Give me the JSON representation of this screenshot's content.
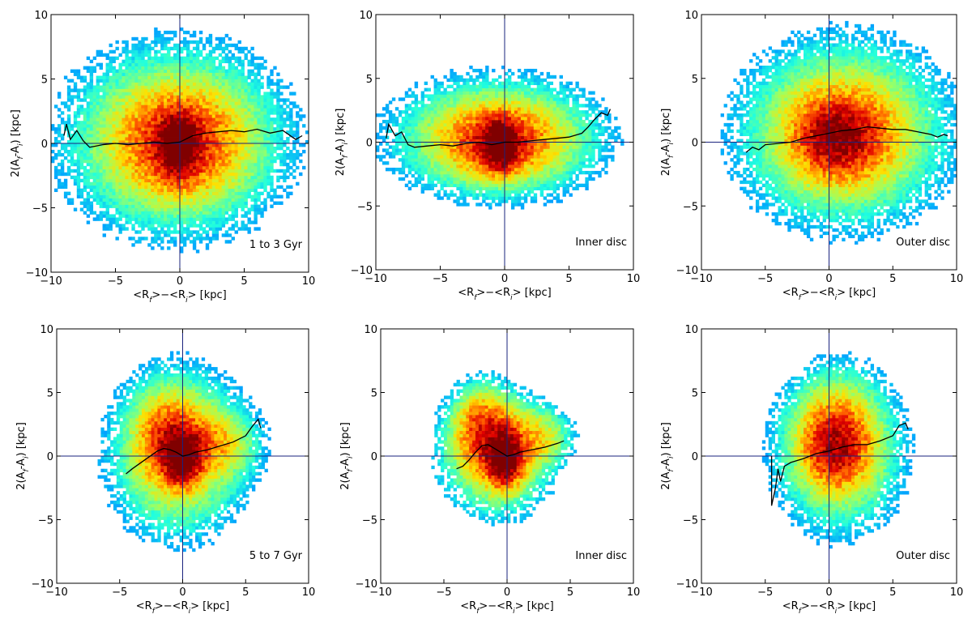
{
  "figure": {
    "colors": {
      "axis_lines": "#1a237e",
      "median": "#000000",
      "colormap": [
        "#00008f",
        "#0020ff",
        "#00a0ff",
        "#20ffdf",
        "#9fff60",
        "#ffe000",
        "#ff6000",
        "#df0000",
        "#800000"
      ]
    }
  },
  "chart_data": [
    {
      "type": "heatmap",
      "title": "",
      "annotation": "1 to 3 Gyr",
      "xlabel": "<R_f>−<R_i> [kpc]",
      "ylabel": "2(A_f-A_i) [kpc]",
      "xlim": [
        -10,
        10
      ],
      "ylim": [
        -10,
        10
      ],
      "xticks": [
        "−10",
        "−5",
        "0",
        "5",
        "10"
      ],
      "yticks": [
        "−10",
        "−5",
        "0",
        "5",
        "10"
      ],
      "density_blobs": [
        {
          "x": -0.3,
          "y": 0.3,
          "sx": 5.0,
          "sy": 4.2,
          "w": 0.35
        },
        {
          "x": 0.0,
          "y": 0.0,
          "sx": 3.0,
          "sy": 2.6,
          "w": 0.45
        },
        {
          "x": -0.1,
          "y": -0.1,
          "sx": 0.9,
          "sy": 1.4,
          "w": 1.0
        }
      ],
      "edge": 0.05,
      "median_line": {
        "x": [
          -9,
          -8.8,
          -8.5,
          -8,
          -7.5,
          -7,
          -6.5,
          -6,
          -5,
          -4,
          -3,
          -2,
          -1,
          0,
          1,
          2,
          3,
          4,
          5,
          6,
          7,
          8,
          9,
          9.5
        ],
        "y": [
          0.6,
          1.5,
          0.3,
          1.0,
          0.2,
          -0.3,
          -0.2,
          -0.1,
          0.0,
          -0.1,
          0.0,
          0.1,
          0.0,
          0.1,
          0.6,
          0.8,
          0.9,
          1.0,
          0.9,
          1.1,
          0.8,
          1.0,
          0.3,
          0.6
        ]
      }
    },
    {
      "type": "heatmap",
      "title": "",
      "annotation": "Inner disc",
      "xlabel": "<R_f>−<R_i> [kpc]",
      "ylabel": "2(A_f-A_i) [kpc]",
      "xlim": [
        -10,
        10
      ],
      "ylim": [
        -10,
        10
      ],
      "xticks": [
        "−10",
        "−5",
        "0",
        "5",
        "10"
      ],
      "yticks": [
        "−10",
        "−5",
        "0",
        "5",
        "10"
      ],
      "density_blobs": [
        {
          "x": -0.5,
          "y": 0.4,
          "sx": 4.8,
          "sy": 2.7,
          "w": 0.35
        },
        {
          "x": -0.5,
          "y": 0.0,
          "sx": 2.8,
          "sy": 1.8,
          "w": 0.45
        },
        {
          "x": -0.3,
          "y": -0.2,
          "sx": 0.8,
          "sy": 1.2,
          "w": 1.0
        }
      ],
      "edge": 0.05,
      "median_line": {
        "x": [
          -9.2,
          -9.0,
          -8.5,
          -8,
          -7.5,
          -7,
          -6,
          -5,
          -4,
          -3,
          -2,
          -1,
          0,
          1,
          2,
          3,
          4,
          5,
          6,
          6.5,
          7,
          7.5,
          8,
          8.2
        ],
        "y": [
          0.3,
          1.4,
          0.5,
          0.8,
          -0.2,
          -0.4,
          -0.3,
          -0.2,
          -0.3,
          -0.1,
          0.0,
          -0.2,
          0.0,
          0.0,
          0.1,
          0.2,
          0.3,
          0.4,
          0.7,
          1.2,
          1.8,
          2.3,
          2.1,
          2.6
        ]
      }
    },
    {
      "type": "heatmap",
      "title": "",
      "annotation": "Outer disc",
      "xlabel": "<R_f>−<R_i> [kpc]",
      "ylabel": "2(A_f-A_i) [kpc]",
      "xlim": [
        -10,
        10
      ],
      "ylim": [
        -10,
        10
      ],
      "xticks": [
        "−10",
        "−5",
        "0",
        "5",
        "10"
      ],
      "yticks": [
        "−10",
        "−5",
        "0",
        "5",
        "10"
      ],
      "density_blobs": [
        {
          "x": 1.2,
          "y": 0.8,
          "sx": 4.8,
          "sy": 4.2,
          "w": 0.35
        },
        {
          "x": 1.0,
          "y": 0.5,
          "sx": 2.8,
          "sy": 2.5,
          "w": 0.45
        },
        {
          "x": 0.5,
          "y": 0.4,
          "sx": 1.5,
          "sy": 1.4,
          "w": 0.4
        }
      ],
      "edge": 0.05,
      "median_line": {
        "x": [
          -6.5,
          -6,
          -5.5,
          -5,
          -4,
          -3,
          -2,
          -1,
          0,
          1,
          2,
          3,
          4,
          5,
          6,
          7,
          8,
          8.5,
          9,
          9.3
        ],
        "y": [
          -0.8,
          -0.4,
          -0.6,
          -0.2,
          -0.1,
          0.0,
          0.3,
          0.5,
          0.7,
          0.9,
          1.0,
          1.2,
          1.1,
          1.0,
          1.0,
          0.8,
          0.6,
          0.4,
          0.6,
          0.5
        ]
      }
    },
    {
      "type": "heatmap",
      "title": "",
      "annotation": "5 to 7 Gyr",
      "xlabel": "<R_f>−<R_i> [kpc]",
      "ylabel": "2(A_f-A_i) [kpc]",
      "xlim": [
        -10,
        10
      ],
      "ylim": [
        -10,
        10
      ],
      "xticks": [
        "−10",
        "−5",
        "0",
        "5",
        "10"
      ],
      "yticks": [
        "−10",
        "−5",
        "0",
        "5",
        "10"
      ],
      "density_blobs": [
        {
          "x": -0.3,
          "y": 0.3,
          "sx": 3.1,
          "sy": 3.7,
          "w": 0.4
        },
        {
          "x": -1.3,
          "y": 1.5,
          "sx": 1.5,
          "sy": 2.2,
          "w": 0.35
        },
        {
          "x": 2.5,
          "y": 1.0,
          "sx": 2.0,
          "sy": 1.6,
          "w": 0.25
        },
        {
          "x": 0.0,
          "y": 0.0,
          "sx": 0.9,
          "sy": 1.3,
          "w": 1.0
        }
      ],
      "edge": 0.05,
      "median_line": {
        "x": [
          -4.5,
          -4,
          -3,
          -2,
          -1.5,
          -1,
          -0.5,
          0,
          0.5,
          1,
          2,
          3,
          4,
          5,
          5.5,
          6,
          6.2
        ],
        "y": [
          -1.4,
          -1.0,
          -0.3,
          0.4,
          0.6,
          0.5,
          0.3,
          0.0,
          0.1,
          0.3,
          0.5,
          0.8,
          1.1,
          1.6,
          2.3,
          2.9,
          2.2
        ]
      }
    },
    {
      "type": "heatmap",
      "title": "",
      "annotation": "Inner disc",
      "xlabel": "<R_f>−<R_i> [kpc]",
      "ylabel": "2(A_f-A_i) [kpc]",
      "xlim": [
        -10,
        10
      ],
      "ylim": [
        -10,
        10
      ],
      "xticks": [
        "−10",
        "−5",
        "0",
        "5",
        "10"
      ],
      "yticks": [
        "−10",
        "−5",
        "0",
        "5",
        "10"
      ],
      "density_blobs": [
        {
          "x": -0.8,
          "y": 0.2,
          "sx": 2.6,
          "sy": 2.8,
          "w": 0.4
        },
        {
          "x": -2.0,
          "y": 2.3,
          "sx": 1.4,
          "sy": 1.9,
          "w": 0.45
        },
        {
          "x": 2.5,
          "y": 1.5,
          "sx": 1.6,
          "sy": 1.4,
          "w": 0.25
        },
        {
          "x": -0.2,
          "y": -0.1,
          "sx": 0.9,
          "sy": 1.4,
          "w": 1.0
        }
      ],
      "edge": 0.06,
      "median_line": {
        "x": [
          -4.0,
          -3.5,
          -3,
          -2.5,
          -2,
          -1.5,
          -1,
          -0.5,
          0,
          0.5,
          1,
          2,
          3,
          4,
          4.5
        ],
        "y": [
          -1.0,
          -0.8,
          -0.3,
          0.3,
          0.8,
          0.9,
          0.6,
          0.3,
          0.0,
          0.1,
          0.3,
          0.5,
          0.7,
          1.0,
          1.2
        ]
      }
    },
    {
      "type": "heatmap",
      "title": "",
      "annotation": "Outer disc",
      "xlabel": "<R_f>−<R_i> [kpc]",
      "ylabel": "2(A_f-A_i) [kpc]",
      "xlim": [
        -10,
        10
      ],
      "ylim": [
        -10,
        10
      ],
      "xticks": [
        "−10",
        "−5",
        "0",
        "5",
        "10"
      ],
      "yticks": [
        "−10",
        "−5",
        "0",
        "5",
        "10"
      ],
      "density_blobs": [
        {
          "x": 0.8,
          "y": 0.5,
          "sx": 2.8,
          "sy": 3.6,
          "w": 0.4
        },
        {
          "x": 0.5,
          "y": 2.0,
          "sx": 1.8,
          "sy": 2.2,
          "w": 0.3
        },
        {
          "x": 0.5,
          "y": 0.3,
          "sx": 1.4,
          "sy": 1.6,
          "w": 0.35
        }
      ],
      "edge": 0.05,
      "median_line": {
        "x": [
          -4.5,
          -4.5,
          -4.2,
          -4.0,
          -3.8,
          -3.5,
          -3,
          -2,
          -1,
          0,
          1,
          2,
          3,
          4,
          5,
          5.5,
          6,
          6.2
        ],
        "y": [
          0.0,
          -3.9,
          -2.5,
          -1.0,
          -2.0,
          -0.8,
          -0.5,
          -0.2,
          0.2,
          0.4,
          0.7,
          0.9,
          0.9,
          1.2,
          1.6,
          2.4,
          2.6,
          2.1
        ]
      }
    }
  ]
}
